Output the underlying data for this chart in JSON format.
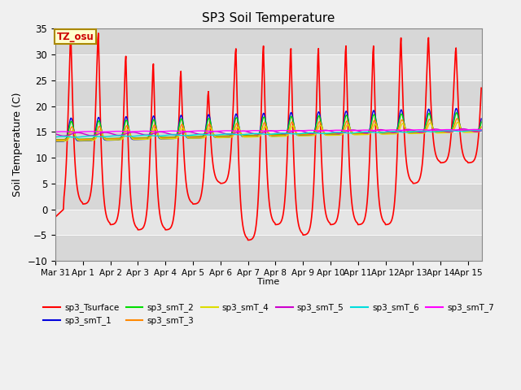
{
  "title": "SP3 Soil Temperature",
  "ylabel": "Soil Temperature (C)",
  "xlabel": "Time",
  "ylim": [
    -10,
    35
  ],
  "xlim_days": 15.5,
  "bg_color": "#e8e8e8",
  "fig_bg": "#f0f0f0",
  "tz_label": "TZ_osu",
  "series": [
    {
      "name": "sp3_Tsurface",
      "color": "#ff0000",
      "lw": 1.2
    },
    {
      "name": "sp3_smT_1",
      "color": "#0000dd",
      "lw": 1.0
    },
    {
      "name": "sp3_smT_2",
      "color": "#00dd00",
      "lw": 1.0
    },
    {
      "name": "sp3_smT_3",
      "color": "#ff8800",
      "lw": 1.0
    },
    {
      "name": "sp3_smT_4",
      "color": "#dddd00",
      "lw": 1.0
    },
    {
      "name": "sp3_smT_5",
      "color": "#cc00cc",
      "lw": 1.0
    },
    {
      "name": "sp3_smT_6",
      "color": "#00dddd",
      "lw": 1.0
    },
    {
      "name": "sp3_smT_7",
      "color": "#ff00ff",
      "lw": 1.0
    }
  ],
  "xtick_labels": [
    "Mar 31",
    "Apr 1",
    "Apr 2",
    "Apr 3",
    "Apr 4",
    "Apr 5",
    "Apr 6",
    "Apr 7",
    "Apr 8",
    "Apr 9",
    "Apr 10",
    "Apr 11",
    "Apr 12",
    "Apr 13",
    "Apr 14",
    "Apr 15"
  ],
  "xtick_positions": [
    0,
    1,
    2,
    3,
    4,
    5,
    6,
    7,
    8,
    9,
    10,
    11,
    12,
    13,
    14,
    15
  ],
  "ytick_positions": [
    -10,
    -5,
    0,
    5,
    10,
    15,
    20,
    25,
    30,
    35
  ],
  "grid_color": "#cccccc",
  "band_color": "#d8d8d8",
  "white_color": "#f2f2f2"
}
